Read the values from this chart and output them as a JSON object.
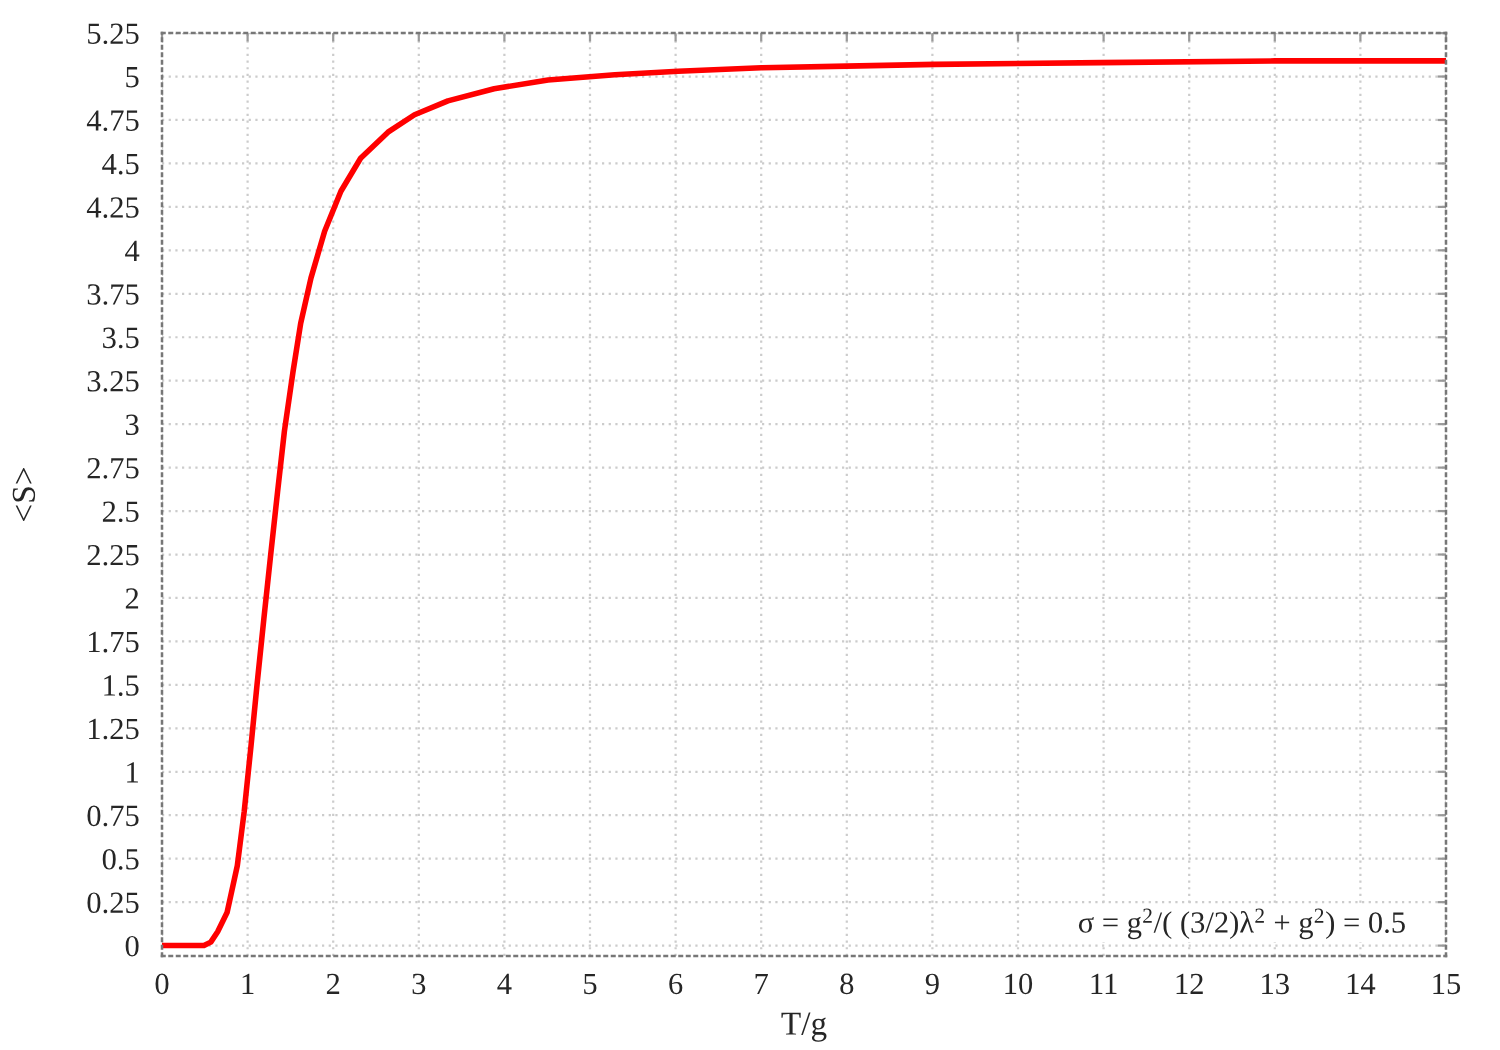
{
  "chart_data": {
    "type": "line",
    "xlabel": "T/g",
    "ylabel": "<S>",
    "x": [
      0,
      0.3,
      0.49,
      0.57,
      0.65,
      0.76,
      0.88,
      0.96,
      1.04,
      1.11,
      1.19,
      1.27,
      1.35,
      1.43,
      1.53,
      1.62,
      1.74,
      1.9,
      2.09,
      2.32,
      2.64,
      2.95,
      3.34,
      3.88,
      4.51,
      5.29,
      6.03,
      7.0,
      8.0,
      9.03,
      10.98,
      13,
      15
    ],
    "series": [
      {
        "color": "#ff0000",
        "values": [
          0,
          0,
          0,
          0.02,
          0.08,
          0.19,
          0.46,
          0.77,
          1.15,
          1.5,
          1.88,
          2.25,
          2.61,
          2.96,
          3.3,
          3.58,
          3.84,
          4.11,
          4.34,
          4.53,
          4.68,
          4.78,
          4.86,
          4.93,
          4.98,
          5.01,
          5.03,
          5.05,
          5.06,
          5.07,
          5.08,
          5.09,
          5.09
        ]
      }
    ],
    "xlim": [
      0,
      15
    ],
    "ylim": [
      -0.06,
      5.25
    ],
    "xticks": [
      0,
      1,
      2,
      3,
      4,
      5,
      6,
      7,
      8,
      9,
      10,
      11,
      12,
      13,
      14,
      15
    ],
    "yticks": [
      0,
      0.25,
      0.5,
      0.75,
      1,
      1.25,
      1.5,
      1.75,
      2,
      2.25,
      2.5,
      2.75,
      3,
      3.25,
      3.5,
      3.75,
      4,
      4.25,
      4.5,
      4.75,
      5,
      5.25
    ],
    "grid": true,
    "line_style": "solid",
    "annotations": [
      "σ = g$^{2}$/( (3/2)λ$^{2}$ + g$^{2}$) = 0.5"
    ]
  }
}
